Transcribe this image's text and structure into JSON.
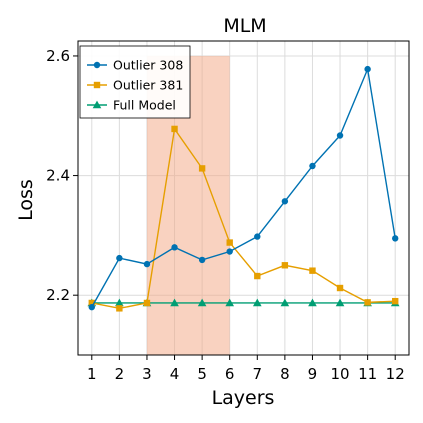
{
  "chart_data": {
    "type": "line",
    "title": "MLM",
    "xlabel": "Layers",
    "ylabel": "Loss",
    "x": [
      1,
      2,
      3,
      4,
      5,
      6,
      7,
      8,
      9,
      10,
      11,
      12
    ],
    "xlim": [
      0.5,
      12.5
    ],
    "ylim": [
      2.1,
      2.625
    ],
    "xticks": [
      1,
      2,
      3,
      4,
      5,
      6,
      7,
      8,
      9,
      10,
      11,
      12
    ],
    "yticks": [
      2.2,
      2.4,
      2.6
    ],
    "ytick_labels": [
      "2.2",
      "2.4",
      "2.6"
    ],
    "grid": true,
    "legend_position": "top-left",
    "highlight_span": {
      "x": [
        3,
        6
      ],
      "y": [
        2.1,
        2.6
      ],
      "color": "#f4a582"
    },
    "series": [
      {
        "name": "Outlier 308",
        "color": "#0072b2",
        "marker": "circle",
        "values": [
          2.18,
          2.262,
          2.252,
          2.28,
          2.259,
          2.273,
          2.298,
          2.357,
          2.416,
          2.467,
          2.578,
          2.295
        ]
      },
      {
        "name": "Outlier 381",
        "color": "#e69f00",
        "marker": "square",
        "values": [
          2.187,
          2.178,
          2.187,
          2.478,
          2.412,
          2.288,
          2.232,
          2.25,
          2.241,
          2.212,
          2.188,
          2.19
        ]
      },
      {
        "name": "Full Model",
        "color": "#009e73",
        "marker": "triangle",
        "values": [
          2.187,
          2.187,
          2.187,
          2.187,
          2.187,
          2.187,
          2.187,
          2.187,
          2.187,
          2.187,
          2.187,
          2.187
        ]
      }
    ]
  }
}
